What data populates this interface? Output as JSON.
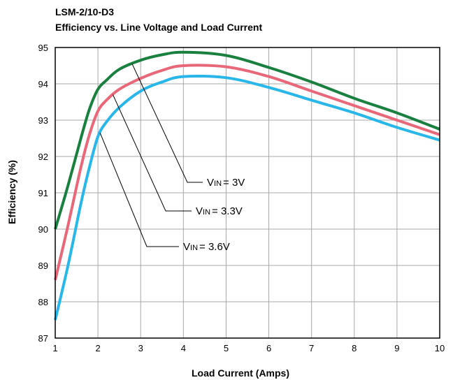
{
  "chart_data": {
    "type": "line",
    "title": "LSM-2/10-D3",
    "subtitle": "Efficiency vs. Line Voltage and Load Current",
    "xlabel": "Load Current (Amps)",
    "ylabel": "Efficiency (%)",
    "xlim": [
      1,
      10
    ],
    "ylim": [
      87,
      95
    ],
    "xticks": [
      1,
      2,
      3,
      4,
      5,
      6,
      7,
      8,
      9,
      10
    ],
    "yticks": [
      87,
      88,
      89,
      90,
      91,
      92,
      93,
      94,
      95
    ],
    "grid": true,
    "series": [
      {
        "name": "3V",
        "color": "#1a8040",
        "x": [
          1,
          1.3,
          1.6,
          1.8,
          2,
          2.2,
          2.5,
          3,
          3.5,
          4,
          5,
          6,
          7,
          8,
          9,
          10
        ],
        "y": [
          90.0,
          91.2,
          92.5,
          93.3,
          93.85,
          94.1,
          94.4,
          94.65,
          94.8,
          94.87,
          94.78,
          94.45,
          94.05,
          93.6,
          93.2,
          92.75
        ]
      },
      {
        "name": "3.3V",
        "color": "#e8687a",
        "x": [
          1,
          1.3,
          1.6,
          1.8,
          2,
          2.2,
          2.5,
          3,
          3.5,
          4,
          5,
          6,
          7,
          8,
          9,
          10
        ],
        "y": [
          88.6,
          90.1,
          91.7,
          92.6,
          93.25,
          93.55,
          93.85,
          94.15,
          94.37,
          94.5,
          94.47,
          94.2,
          93.8,
          93.4,
          93.0,
          92.6
        ]
      },
      {
        "name": "3.6V",
        "color": "#29b6e8",
        "x": [
          1,
          1.3,
          1.6,
          1.8,
          2,
          2.2,
          2.5,
          3,
          3.5,
          4,
          5,
          6,
          7,
          8,
          9,
          10
        ],
        "y": [
          87.5,
          89.0,
          90.7,
          91.7,
          92.55,
          92.95,
          93.35,
          93.8,
          94.05,
          94.2,
          94.17,
          93.9,
          93.55,
          93.2,
          92.8,
          92.45
        ]
      }
    ],
    "annotations": [
      {
        "prefix": "V",
        "sub": "IN",
        "text": "= 3V"
      },
      {
        "prefix": "V",
        "sub": "IN",
        "text": "= 3.3V"
      },
      {
        "prefix": "V",
        "sub": "IN",
        "text": "= 3.6V"
      }
    ]
  }
}
